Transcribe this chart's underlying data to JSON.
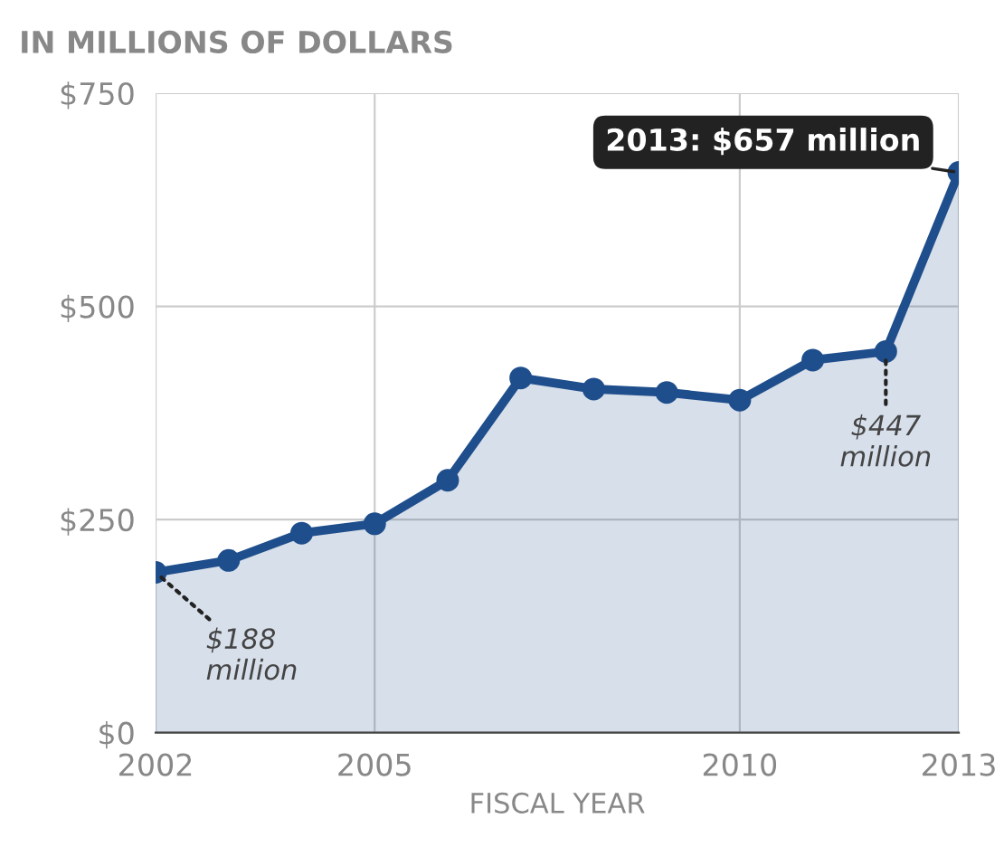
{
  "chart_data": {
    "type": "area",
    "title": "IN MILLIONS OF DOLLARS",
    "xlabel": "FISCAL YEAR",
    "x": [
      2002,
      2003,
      2004,
      2005,
      2006,
      2007,
      2008,
      2009,
      2010,
      2011,
      2012,
      2013
    ],
    "series": [
      {
        "color": "#1f4e8c",
        "values": [
          188,
          202,
          234,
          245,
          296,
          416,
          403,
          399,
          390,
          437,
          447,
          657
        ]
      }
    ],
    "xlim": [
      2002,
      2013
    ],
    "xticks": [
      2002,
      2005,
      2010,
      2013
    ],
    "ylim": [
      0,
      750
    ],
    "yticks": [
      {
        "value": 0,
        "label": "$0"
      },
      {
        "value": 250,
        "label": "$250"
      },
      {
        "value": 500,
        "label": "$500"
      },
      {
        "value": 750,
        "label": "$750"
      }
    ],
    "grid": true,
    "marker": "circle",
    "line_style": "solid",
    "annotations": [
      {
        "text": "2013: $657 million",
        "x": 2013,
        "y": 657
      },
      {
        "text": "$188\nmillion",
        "x": 2002,
        "y": 188
      },
      {
        "text": "$447\nmillion",
        "x": 2012,
        "y": 447
      }
    ]
  }
}
